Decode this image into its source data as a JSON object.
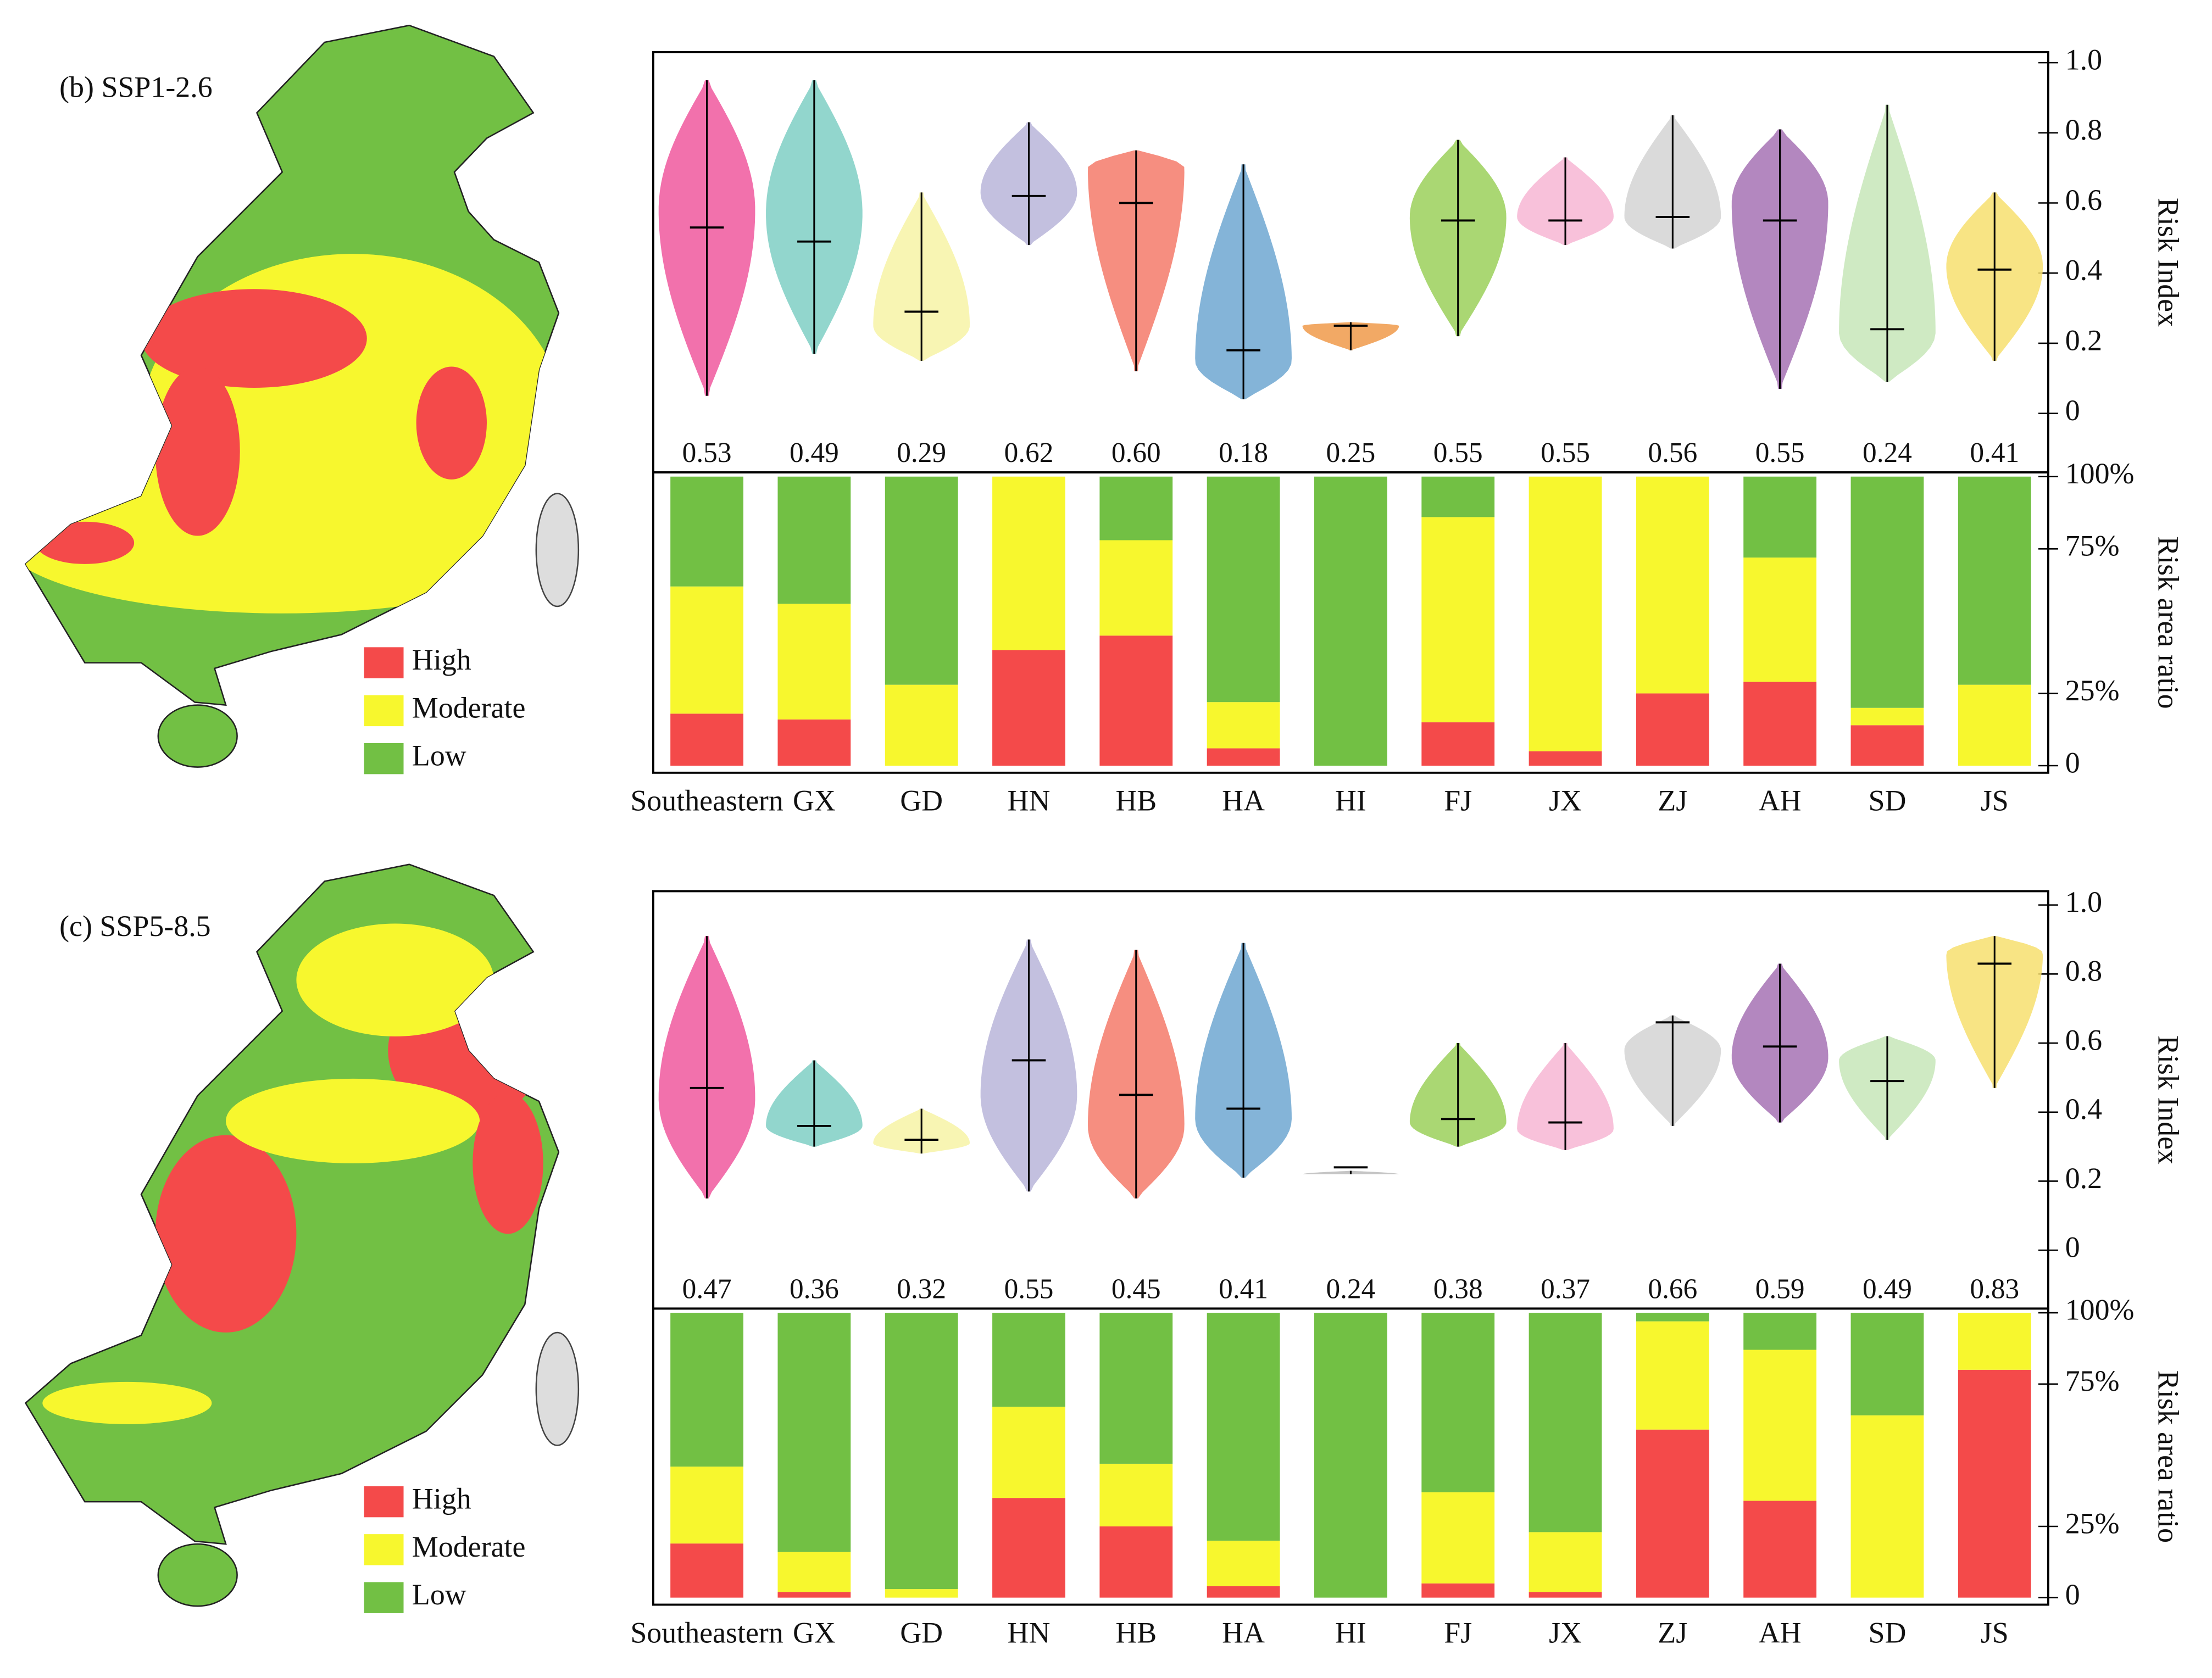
{
  "chart_data": [
    {
      "type": "violin",
      "title": "(b) SSP1-2.6",
      "ylabel": "Risk Index",
      "ylim": [
        -0.12,
        1.03
      ],
      "yticks": [
        0,
        0.2,
        0.4,
        0.6,
        0.8,
        {
          "value": 1,
          "label": "1.0"
        }
      ],
      "values": [
        0.53,
        0.49,
        0.29,
        0.62,
        0.6,
        0.18,
        0.25,
        0.55,
        0.55,
        0.56,
        0.55,
        0.24,
        0.41
      ],
      "value_labels": [
        "0.53",
        "0.49",
        "0.29",
        "0.62",
        "0.60",
        "0.18",
        "0.25",
        "0.55",
        "0.55",
        "0.56",
        "0.55",
        "0.24",
        "0.41"
      ],
      "min": [
        0.05,
        0.17,
        0.15,
        0.48,
        0.12,
        0.04,
        0.18,
        0.22,
        0.48,
        0.47,
        0.07,
        0.09,
        0.15
      ],
      "max": [
        0.95,
        0.95,
        0.63,
        0.83,
        0.75,
        0.71,
        0.26,
        0.78,
        0.73,
        0.85,
        0.81,
        0.88,
        0.63
      ],
      "mode": [
        0.58,
        0.57,
        0.25,
        0.63,
        0.7,
        0.15,
        0.25,
        0.56,
        0.56,
        0.56,
        0.6,
        0.23,
        0.42
      ],
      "colors": [
        "#f0589e",
        "#7fcfc4",
        "#f7f3a6",
        "#b9b5d9",
        "#f47a6a",
        "#6fa7d1",
        "#f09a4a",
        "#9bd05a",
        "#f7b6d4",
        "#d4d4d4",
        "#a672b4",
        "#c7e6b9",
        "#f7df6e"
      ]
    },
    {
      "type": "bar",
      "stacked": true,
      "ylabel": "Risk area ratio",
      "categories": [
        "Southeastern",
        "GX",
        "GD",
        "HN",
        "HB",
        "HA",
        "HI",
        "FJ",
        "JX",
        "ZJ",
        "AH",
        "SD",
        "JS"
      ],
      "ylim": [
        0,
        100
      ],
      "yticks": [
        0,
        {
          "value": 25,
          "label": "25%"
        },
        {
          "value": 75,
          "label": "75%"
        },
        {
          "value": 100,
          "label": "100%"
        }
      ],
      "series": [
        {
          "name": "High",
          "color": "#f44a4a",
          "values": [
            18,
            16,
            0,
            40,
            45,
            6,
            0,
            15,
            5,
            25,
            29,
            14,
            0
          ]
        },
        {
          "name": "Moderate",
          "color": "#f7f72e",
          "values": [
            44,
            40,
            28,
            60,
            33,
            16,
            0,
            71,
            95,
            75,
            43,
            6,
            28
          ]
        },
        {
          "name": "Low",
          "color": "#72c044",
          "values": [
            38,
            44,
            72,
            0,
            22,
            78,
            100,
            14,
            0,
            0,
            28,
            80,
            72
          ]
        }
      ]
    },
    {
      "type": "violin",
      "title": "(c) SSP5-8.5",
      "ylabel": "Risk Index",
      "ylim": [
        -0.12,
        1.04
      ],
      "yticks": [
        0,
        0.2,
        0.4,
        0.6,
        0.8,
        {
          "value": 1,
          "label": "1.0"
        }
      ],
      "values": [
        0.47,
        0.36,
        0.32,
        0.55,
        0.45,
        0.41,
        0.24,
        0.38,
        0.37,
        0.66,
        0.59,
        0.49,
        0.83
      ],
      "value_labels": [
        "0.47",
        "0.36",
        "0.32",
        "0.55",
        "0.45",
        "0.41",
        "0.24",
        "0.38",
        "0.37",
        "0.66",
        "0.59",
        "0.49",
        "0.83"
      ],
      "min": [
        0.15,
        0.3,
        0.28,
        0.17,
        0.15,
        0.21,
        0.22,
        0.3,
        0.29,
        0.36,
        0.37,
        0.32,
        0.47
      ],
      "max": [
        0.91,
        0.55,
        0.41,
        0.9,
        0.87,
        0.89,
        0.23,
        0.6,
        0.6,
        0.68,
        0.83,
        0.62,
        0.91
      ],
      "mode": [
        0.44,
        0.36,
        0.31,
        0.45,
        0.36,
        0.38,
        0.22,
        0.37,
        0.35,
        0.58,
        0.56,
        0.55,
        0.86
      ],
      "colors": [
        "#f0589e",
        "#7fcfc4",
        "#f7f3a6",
        "#b9b5d9",
        "#f47a6a",
        "#6fa7d1",
        "#bbbbbb",
        "#9bd05a",
        "#f7b6d4",
        "#d4d4d4",
        "#a672b4",
        "#c7e6b9",
        "#f7df6e"
      ]
    },
    {
      "type": "bar",
      "stacked": true,
      "ylabel": "Risk area ratio",
      "categories": [
        "Southeastern",
        "GX",
        "GD",
        "HN",
        "HB",
        "HA",
        "HI",
        "FJ",
        "JX",
        "ZJ",
        "AH",
        "SD",
        "JS"
      ],
      "ylim": [
        0,
        100
      ],
      "yticks": [
        0,
        {
          "value": 25,
          "label": "25%"
        },
        {
          "value": 75,
          "label": "75%"
        },
        {
          "value": 100,
          "label": "100%"
        }
      ],
      "series": [
        {
          "name": "High",
          "color": "#f44a4a",
          "values": [
            19,
            2,
            0,
            35,
            25,
            4,
            0,
            5,
            2,
            59,
            34,
            0,
            80
          ]
        },
        {
          "name": "Moderate",
          "color": "#f7f72e",
          "values": [
            27,
            14,
            3,
            32,
            22,
            16,
            0,
            32,
            21,
            38,
            53,
            64,
            20
          ]
        },
        {
          "name": "Low",
          "color": "#72c044",
          "values": [
            54,
            84,
            97,
            33,
            53,
            80,
            100,
            63,
            77,
            3,
            13,
            36,
            0
          ]
        }
      ]
    }
  ]
}
